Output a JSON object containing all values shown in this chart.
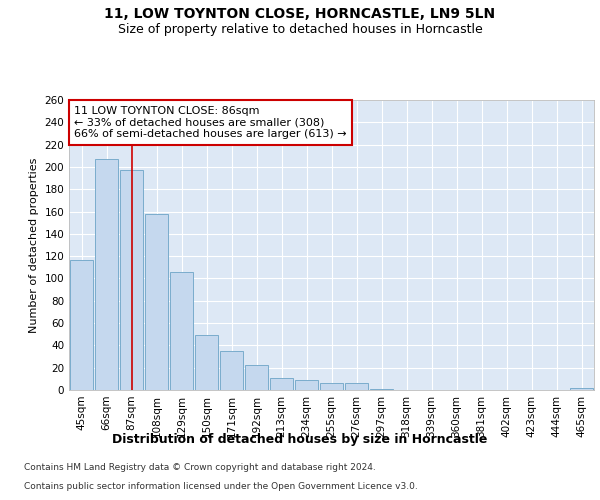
{
  "title1": "11, LOW TOYNTON CLOSE, HORNCASTLE, LN9 5LN",
  "title2": "Size of property relative to detached houses in Horncastle",
  "xlabel": "Distribution of detached houses by size in Horncastle",
  "ylabel": "Number of detached properties",
  "footnote1": "Contains HM Land Registry data © Crown copyright and database right 2024.",
  "footnote2": "Contains public sector information licensed under the Open Government Licence v3.0.",
  "bar_labels": [
    "45sqm",
    "66sqm",
    "87sqm",
    "108sqm",
    "129sqm",
    "150sqm",
    "171sqm",
    "192sqm",
    "213sqm",
    "234sqm",
    "255sqm",
    "276sqm",
    "297sqm",
    "318sqm",
    "339sqm",
    "360sqm",
    "381sqm",
    "402sqm",
    "423sqm",
    "444sqm",
    "465sqm"
  ],
  "bar_values": [
    117,
    207,
    197,
    158,
    106,
    49,
    35,
    22,
    11,
    9,
    6,
    6,
    1,
    0,
    0,
    0,
    0,
    0,
    0,
    0,
    2
  ],
  "bar_color": "#c5d8ee",
  "bar_edge_color": "#7aaccc",
  "property_line_x": 2.0,
  "annotation_text": "11 LOW TOYNTON CLOSE: 86sqm\n← 33% of detached houses are smaller (308)\n66% of semi-detached houses are larger (613) →",
  "annotation_box_color": "#ffffff",
  "annotation_box_edge": "#cc0000",
  "red_line_color": "#cc0000",
  "ylim": [
    0,
    260
  ],
  "yticks": [
    0,
    20,
    40,
    60,
    80,
    100,
    120,
    140,
    160,
    180,
    200,
    220,
    240,
    260
  ],
  "background_color": "#dde8f5",
  "grid_color": "#ffffff",
  "title1_fontsize": 10,
  "title2_fontsize": 9,
  "xlabel_fontsize": 9,
  "ylabel_fontsize": 8,
  "tick_fontsize": 7.5,
  "annotation_fontsize": 8,
  "footnote_fontsize": 6.5
}
